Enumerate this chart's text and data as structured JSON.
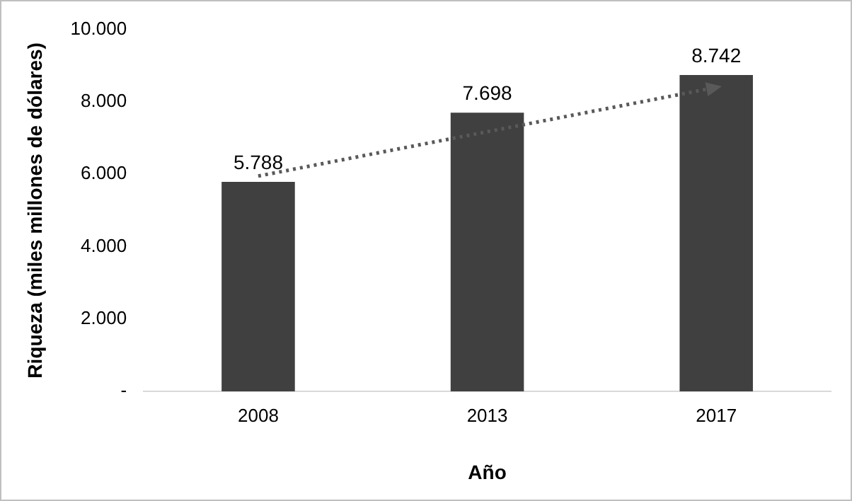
{
  "chart_data": {
    "type": "bar",
    "xlabel": "Año",
    "ylabel": "Riqueza (miles millones de dólares)",
    "categories": [
      "2008",
      "2013",
      "2017"
    ],
    "series": [
      {
        "color": "#404040",
        "values": [
          5788,
          7698,
          8742
        ],
        "value_labels": [
          "5.788",
          "7.698",
          "8.742"
        ]
      },
      {
        "type": "line",
        "color": "#595959",
        "values": [
          5950,
          null,
          8400
        ],
        "line_style": "dotted"
      }
    ],
    "ylim": [
      0,
      10000
    ],
    "yticks": [
      {
        "value": 0,
        "label": "-"
      },
      {
        "value": 2000,
        "label": "2.000"
      },
      {
        "value": 4000,
        "label": "4.000"
      },
      {
        "value": 6000,
        "label": "6.000"
      },
      {
        "value": 8000,
        "label": "8.000"
      },
      {
        "value": 10000,
        "label": "10.000"
      }
    ],
    "grid": false,
    "legend": false
  }
}
